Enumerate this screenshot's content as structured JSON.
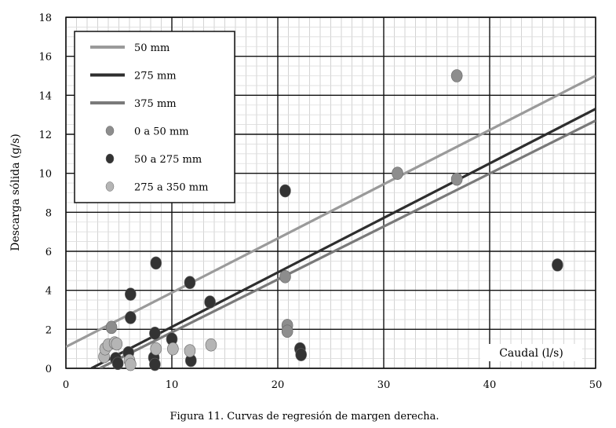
{
  "chart_data": {
    "type": "scatter",
    "xlabel": "Caudal (l/s)",
    "ylabel": "Descarga sólida (g/s)",
    "caption": "Figura 11. Curvas de regresión de margen derecha.",
    "xlim": [
      0,
      50
    ],
    "ylim": [
      0,
      18
    ],
    "x_ticks": [
      "0",
      "10",
      "20",
      "30",
      "40",
      "50"
    ],
    "y_ticks": [
      "0",
      "2",
      "4",
      "6",
      "8",
      "10",
      "12",
      "14",
      "16",
      "18"
    ],
    "grid": true,
    "legend_position": "top-left",
    "lines": [
      {
        "name": "50 mm",
        "color": "#9a9a9a",
        "points": [
          [
            0,
            1.1
          ],
          [
            50,
            15.0
          ]
        ]
      },
      {
        "name": "275 mm",
        "color": "#2e2e2e",
        "points": [
          [
            2.4,
            0
          ],
          [
            50,
            13.3
          ]
        ]
      },
      {
        "name": "375 mm",
        "color": "#7a7a7a",
        "points": [
          [
            3.2,
            0
          ],
          [
            50,
            12.7
          ]
        ]
      }
    ],
    "series": [
      {
        "name": "0 a 50 mm",
        "color": "#8d8d8d",
        "points": [
          [
            4.3,
            2.1
          ],
          [
            20.7,
            4.7
          ],
          [
            31.3,
            10.0
          ],
          [
            36.9,
            15.0
          ],
          [
            36.9,
            9.7
          ],
          [
            20.9,
            2.2
          ],
          [
            20.9,
            1.9
          ]
        ]
      },
      {
        "name": "50 a 275 mm",
        "color": "#333333",
        "points": [
          [
            6.1,
            3.8
          ],
          [
            6.1,
            2.6
          ],
          [
            8.5,
            5.4
          ],
          [
            11.7,
            4.4
          ],
          [
            13.6,
            3.4
          ],
          [
            20.7,
            9.1
          ],
          [
            8.4,
            1.8
          ],
          [
            10.0,
            1.5
          ],
          [
            4.7,
            0.5
          ],
          [
            4.9,
            0.25
          ],
          [
            5.9,
            0.8
          ],
          [
            8.3,
            0.55
          ],
          [
            8.4,
            0.2
          ],
          [
            11.8,
            0.4
          ],
          [
            22.1,
            1.0
          ],
          [
            22.2,
            0.7
          ],
          [
            46.4,
            5.3
          ]
        ]
      },
      {
        "name": "275 a 350 mm",
        "color": "#b5b5b5",
        "points": [
          [
            3.6,
            0.6
          ],
          [
            3.7,
            1.0
          ],
          [
            4.0,
            1.2
          ],
          [
            4.6,
            1.3
          ],
          [
            4.8,
            1.25
          ],
          [
            6.0,
            0.4
          ],
          [
            6.1,
            0.2
          ],
          [
            8.5,
            1.0
          ],
          [
            10.1,
            1.0
          ],
          [
            11.7,
            0.9
          ],
          [
            13.7,
            1.2
          ]
        ]
      }
    ]
  }
}
